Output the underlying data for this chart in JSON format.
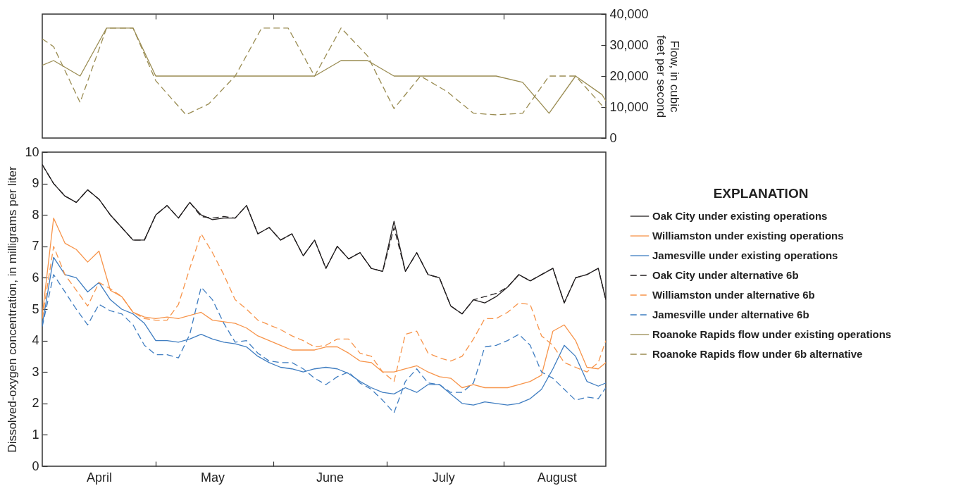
{
  "chart_data": [
    {
      "type": "line",
      "y2label": "Flow, in cubic feet per second",
      "xlim": [
        "--04-01",
        "--08-28"
      ],
      "ylim": [
        0,
        40000
      ],
      "xticks": [
        {
          "value": "--05-01",
          "label": null
        },
        {
          "value": "--06-01",
          "label": null
        },
        {
          "value": "--07-01",
          "label": null
        },
        {
          "value": "--08-01",
          "label": null
        }
      ],
      "yticks": [
        0,
        {
          "value": 10000,
          "label": "10,000"
        },
        {
          "value": 20000,
          "label": "20,000"
        },
        {
          "value": 30000,
          "label": "30,000"
        },
        {
          "value": 40000,
          "label": "40,000"
        }
      ],
      "tick_labels": "y",
      "legend": "right",
      "x": [
        "--04-01",
        "--04-04",
        "--04-11",
        "--04-18",
        "--04-25",
        "--05-01",
        "--05-09",
        "--05-15",
        "--05-22",
        "--05-29",
        "--06-05",
        "--06-12",
        "--06-19",
        "--06-26",
        "--07-03",
        "--07-10",
        "--07-17",
        "--07-24",
        "--07-30",
        "--08-06",
        "--08-13",
        "--08-20",
        "--08-27",
        "--08-28"
      ],
      "series": [
        {
          "name": "Roanoke Rapids flow under existing operations",
          "color": "#9a8c52",
          "line_style": "solid",
          "x": [
            "--04-01",
            "--04-04",
            "--04-11",
            "--04-18",
            "--04-25",
            "--05-01",
            "--06-12",
            "--06-19",
            "--06-26",
            "--07-03",
            "--07-30",
            "--08-06",
            "--08-13",
            "--08-20",
            "--08-27",
            "--08-28"
          ],
          "values": [
            23500,
            25000,
            20000,
            35500,
            35500,
            20000,
            20000,
            25000,
            25000,
            20000,
            20000,
            18000,
            8000,
            20000,
            14000,
            12000
          ]
        },
        {
          "name": "Roanoke Rapids flow under 6b alternative",
          "color": "#9a8c52",
          "line_style": "dashed",
          "values": [
            32000,
            29500,
            11500,
            35500,
            35500,
            18500,
            7500,
            11000,
            20000,
            35500,
            35500,
            20000,
            35500,
            26500,
            9500,
            20000,
            15000,
            8000,
            7500,
            8000,
            20000,
            20000,
            10500,
            10000
          ]
        }
      ]
    },
    {
      "type": "line",
      "ylabel": "Dissolved-oxygen concentration, in milligrams per liter",
      "legend_title": "EXPLANATION",
      "legend": "right",
      "xlim": [
        "--04-01",
        "--08-28"
      ],
      "ylim": [
        0,
        10
      ],
      "yticks": [
        0,
        1,
        2,
        3,
        4,
        5,
        6,
        7,
        8,
        9,
        10
      ],
      "xticks": [
        {
          "value": "--04-16",
          "label": "April"
        },
        {
          "value": "--05-01",
          "label": null
        },
        {
          "value": "--05-16",
          "label": "May"
        },
        {
          "value": "--06-01",
          "label": null
        },
        {
          "value": "--06-16",
          "label": "June"
        },
        {
          "value": "--07-01",
          "label": null
        },
        {
          "value": "--07-16",
          "label": "July"
        },
        {
          "value": "--08-01",
          "label": null
        },
        {
          "value": "--08-15",
          "label": "August"
        }
      ],
      "x": [
        "--04-01",
        "--04-04",
        "--04-07",
        "--04-10",
        "--04-13",
        "--04-16",
        "--04-19",
        "--04-22",
        "--04-25",
        "--04-28",
        "--05-01",
        "--05-04",
        "--05-07",
        "--05-10",
        "--05-13",
        "--05-16",
        "--05-19",
        "--05-22",
        "--05-25",
        "--05-28",
        "--05-31",
        "--06-03",
        "--06-06",
        "--06-09",
        "--06-12",
        "--06-15",
        "--06-18",
        "--06-21",
        "--06-24",
        "--06-27",
        "--06-30",
        "--07-03",
        "--07-06",
        "--07-09",
        "--07-12",
        "--07-15",
        "--07-18",
        "--07-21",
        "--07-24",
        "--07-27",
        "--07-30",
        "--08-02",
        "--08-05",
        "--08-08",
        "--08-11",
        "--08-14",
        "--08-17",
        "--08-20",
        "--08-23",
        "--08-26",
        "--08-28"
      ],
      "series": [
        {
          "name": "Oak City under existing operations",
          "color": "#231f20",
          "line_style": "solid",
          "values": [
            9.6,
            9.0,
            8.6,
            8.4,
            8.8,
            8.5,
            8.0,
            7.6,
            7.2,
            7.2,
            8.0,
            8.3,
            7.9,
            8.4,
            8.0,
            7.85,
            7.9,
            7.9,
            8.3,
            7.4,
            7.6,
            7.2,
            7.4,
            6.7,
            7.2,
            6.3,
            7.0,
            6.6,
            6.8,
            6.3,
            6.2,
            7.8,
            6.2,
            6.8,
            6.1,
            6.0,
            5.1,
            4.85,
            5.3,
            5.2,
            5.4,
            5.7,
            6.1,
            5.9,
            6.1,
            6.3,
            5.2,
            6.0,
            6.1,
            6.3,
            5.3
          ]
        },
        {
          "name": "Williamston under existing operations",
          "color": "#f7944a",
          "line_style": "solid",
          "values": [
            4.8,
            7.9,
            7.1,
            6.9,
            6.5,
            6.85,
            5.6,
            5.4,
            4.9,
            4.75,
            4.7,
            4.75,
            4.7,
            4.8,
            4.9,
            4.65,
            4.6,
            4.55,
            4.4,
            4.15,
            4.0,
            3.85,
            3.7,
            3.7,
            3.7,
            3.8,
            3.8,
            3.6,
            3.35,
            3.3,
            3.0,
            3.0,
            3.1,
            3.2,
            3.0,
            2.85,
            2.8,
            2.5,
            2.6,
            2.5,
            2.5,
            2.5,
            2.6,
            2.7,
            2.9,
            4.3,
            4.5,
            4.0,
            3.15,
            3.1,
            3.3
          ]
        },
        {
          "name": "Jamesville under existing operations",
          "color": "#3f7dc1",
          "line_style": "solid",
          "values": [
            4.5,
            6.65,
            6.1,
            6.0,
            5.55,
            5.85,
            5.3,
            5.0,
            4.85,
            4.55,
            4.0,
            4.0,
            3.95,
            4.05,
            4.2,
            4.05,
            3.95,
            3.9,
            3.8,
            3.5,
            3.3,
            3.15,
            3.1,
            3.0,
            3.1,
            3.15,
            3.1,
            2.95,
            2.7,
            2.5,
            2.35,
            2.3,
            2.5,
            2.35,
            2.6,
            2.6,
            2.3,
            2.0,
            1.95,
            2.05,
            2.0,
            1.95,
            2.0,
            2.15,
            2.45,
            3.1,
            3.85,
            3.5,
            2.7,
            2.55,
            2.65
          ]
        },
        {
          "name": "Oak City under alternative 6b",
          "color": "#231f20",
          "line_style": "dashed",
          "values": [
            9.6,
            9.0,
            8.6,
            8.4,
            8.8,
            8.5,
            8.0,
            7.6,
            7.2,
            7.2,
            8.0,
            8.3,
            7.9,
            8.4,
            7.95,
            7.9,
            7.95,
            7.9,
            8.3,
            7.4,
            7.6,
            7.2,
            7.4,
            6.7,
            7.2,
            6.3,
            7.0,
            6.6,
            6.8,
            6.3,
            6.2,
            7.6,
            6.2,
            6.8,
            6.1,
            6.0,
            5.1,
            4.85,
            5.3,
            5.4,
            5.5,
            5.7,
            6.1,
            5.9,
            6.1,
            6.3,
            5.2,
            6.0,
            6.1,
            6.3,
            5.3
          ]
        },
        {
          "name": "Williamston under alternative 6b",
          "color": "#f7944a",
          "line_style": "dashed",
          "values": [
            4.7,
            7.0,
            6.1,
            5.6,
            5.1,
            5.85,
            5.65,
            5.4,
            4.9,
            4.7,
            4.65,
            4.65,
            5.15,
            6.3,
            7.4,
            6.8,
            6.1,
            5.3,
            5.0,
            4.65,
            4.5,
            4.35,
            4.15,
            4.0,
            3.8,
            3.85,
            4.05,
            4.05,
            3.6,
            3.5,
            3.0,
            2.7,
            4.2,
            4.3,
            3.6,
            3.45,
            3.35,
            3.5,
            4.05,
            4.7,
            4.7,
            4.9,
            5.2,
            5.15,
            4.15,
            3.85,
            3.3,
            3.15,
            3.0,
            3.3,
            4.0
          ]
        },
        {
          "name": "Jamesville under alternative 6b",
          "color": "#3f7dc1",
          "line_style": "dashed",
          "values": [
            4.45,
            6.1,
            5.55,
            5.0,
            4.5,
            5.15,
            4.95,
            4.85,
            4.5,
            3.85,
            3.55,
            3.55,
            3.45,
            4.2,
            5.7,
            5.3,
            4.55,
            3.95,
            4.0,
            3.6,
            3.35,
            3.3,
            3.3,
            3.1,
            2.8,
            2.6,
            2.85,
            3.0,
            2.65,
            2.45,
            2.1,
            1.7,
            2.7,
            3.1,
            2.65,
            2.6,
            2.35,
            2.35,
            2.65,
            3.8,
            3.85,
            4.0,
            4.2,
            3.85,
            3.0,
            2.8,
            2.45,
            2.1,
            2.2,
            2.15,
            2.5
          ]
        }
      ]
    }
  ]
}
